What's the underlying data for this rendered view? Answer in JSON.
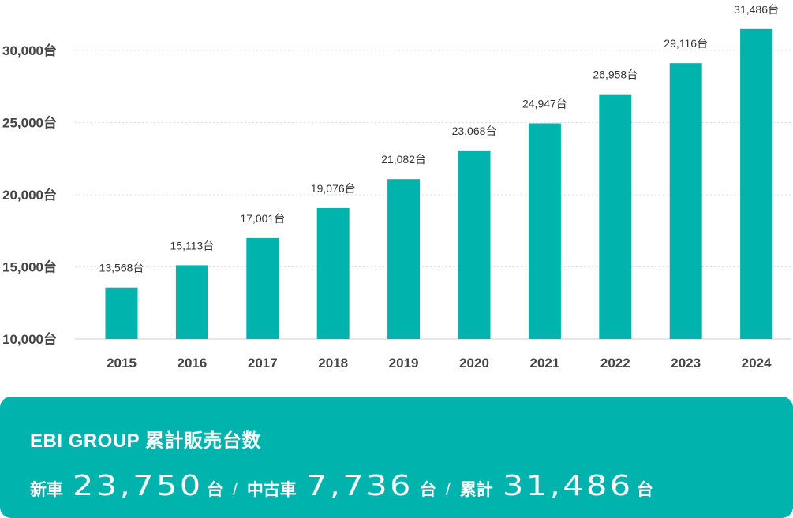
{
  "chart_data": {
    "type": "bar",
    "categories": [
      "2015",
      "2016",
      "2017",
      "2018",
      "2019",
      "2020",
      "2021",
      "2022",
      "2023",
      "2024"
    ],
    "values": [
      13568,
      15113,
      17001,
      19076,
      21082,
      23068,
      24947,
      26958,
      29116,
      31486
    ],
    "value_labels": [
      "13,568台",
      "15,113台",
      "17,001台",
      "19,076台",
      "21,082台",
      "23,068台",
      "24,947台",
      "26,958台",
      "29,116台",
      "31,486台"
    ],
    "y_ticks": [
      10000,
      15000,
      20000,
      25000,
      30000
    ],
    "y_tick_labels": [
      "10,000台",
      "15,000台",
      "20,000台",
      "25,000台",
      "30,000台"
    ],
    "ylim": [
      10000,
      31486
    ],
    "grid": true,
    "title": "",
    "xlabel": "",
    "ylabel": "",
    "bar_color": "#00b3ad"
  },
  "summary": {
    "title": "EBI GROUP 累計販売台数",
    "new_label": "新車",
    "new_value": "23,750",
    "used_label": "中古車",
    "used_value": "7,736",
    "total_label": "累計",
    "total_value": "31,486",
    "unit": "台",
    "separator": "/",
    "background": "#00b3ad"
  }
}
